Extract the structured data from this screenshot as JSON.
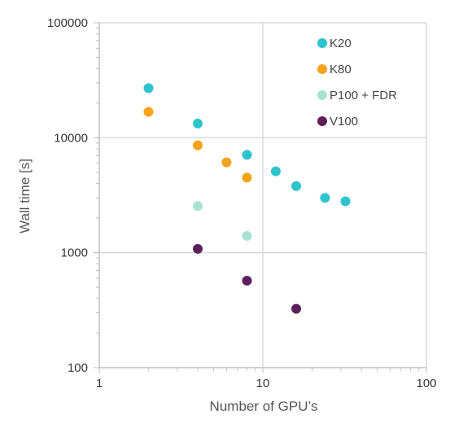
{
  "chart_data": {
    "type": "scatter",
    "title": "",
    "xlabel": "Number of GPU’s",
    "ylabel": "Wall time [s]",
    "xscale": "log",
    "yscale": "log",
    "xlim": [
      1,
      100
    ],
    "ylim": [
      100,
      100000
    ],
    "x_ticks": [
      "1",
      "10",
      "100"
    ],
    "y_ticks": [
      "100",
      "1000",
      "10000",
      "100000"
    ],
    "grid": "major",
    "legend_position": "top-right",
    "series": [
      {
        "name": "K20",
        "color": "#2ec4cc",
        "points": [
          [
            2,
            27000
          ],
          [
            4,
            13300
          ],
          [
            8,
            7100
          ],
          [
            12,
            5100
          ],
          [
            16,
            3800
          ],
          [
            24,
            3000
          ],
          [
            32,
            2800
          ]
        ]
      },
      {
        "name": "K80",
        "color": "#f5a31a",
        "points": [
          [
            2,
            16800
          ],
          [
            4,
            8600
          ],
          [
            6,
            6100
          ],
          [
            8,
            4500
          ]
        ]
      },
      {
        "name": "P100 + FDR",
        "color": "#a8e3d2",
        "points": [
          [
            4,
            2550
          ],
          [
            8,
            1400
          ]
        ]
      },
      {
        "name": "V100",
        "color": "#5c1f59",
        "points": [
          [
            4,
            1080
          ],
          [
            8,
            570
          ],
          [
            16,
            325
          ]
        ]
      }
    ]
  }
}
